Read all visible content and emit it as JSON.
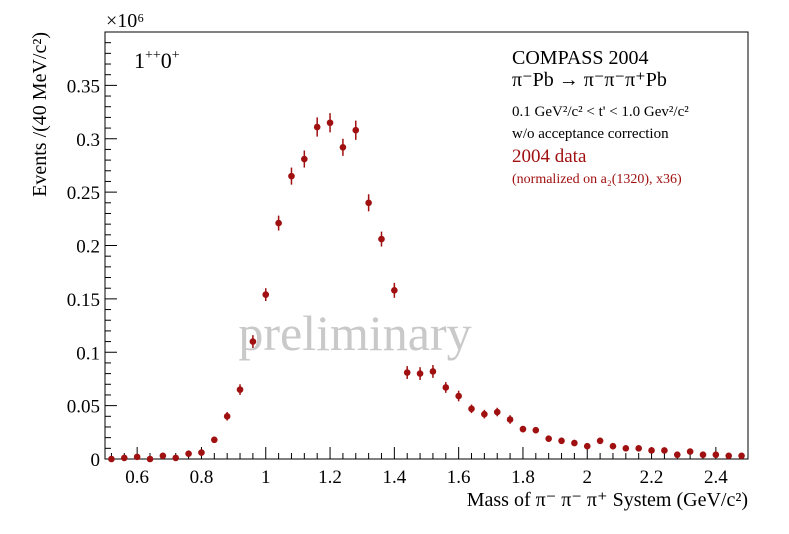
{
  "chart_data": {
    "type": "scatter",
    "title": "",
    "xlabel": "Mass of π⁻ π⁻ π⁺ System (GeV/c²)",
    "ylabel": "Events /(40 MeV/c²)",
    "y_multiplier": "×10⁶",
    "xlim": [
      0.5,
      2.5
    ],
    "ylim": [
      0,
      0.4
    ],
    "x_ticks": [
      "0.6",
      "0.8",
      "1",
      "1.2",
      "1.4",
      "1.6",
      "1.8",
      "2",
      "2.2",
      "2.4"
    ],
    "y_ticks": [
      "0",
      "0.05",
      "0.1",
      "0.15",
      "0.2",
      "0.25",
      "0.3",
      "0.35"
    ],
    "x_tick_values": [
      0.6,
      0.8,
      1.0,
      1.2,
      1.4,
      1.6,
      1.8,
      2.0,
      2.2,
      2.4
    ],
    "y_tick_values": [
      0,
      0.05,
      0.1,
      0.15,
      0.2,
      0.25,
      0.3,
      0.35
    ],
    "wave_label": {
      "main": "1",
      "sup1": "++",
      "mid": "0",
      "sup2": "+"
    },
    "watermark": "preliminary",
    "legend": {
      "line1": "COMPASS 2004",
      "line2": "π⁻Pb → π⁻π⁻π⁺Pb",
      "line3": "0.1 GeV²/c² < t' < 1.0 Gev²/c²",
      "line4": "w/o acceptance correction",
      "series_name": "2004 data",
      "series_note": "(normalized on a₂(1320), x36)"
    },
    "series": [
      {
        "name": "2004 data",
        "color": "#a01010",
        "x": [
          0.52,
          0.56,
          0.6,
          0.64,
          0.68,
          0.72,
          0.76,
          0.8,
          0.84,
          0.88,
          0.92,
          0.96,
          1.0,
          1.04,
          1.08,
          1.12,
          1.16,
          1.2,
          1.24,
          1.28,
          1.32,
          1.36,
          1.4,
          1.44,
          1.48,
          1.52,
          1.56,
          1.6,
          1.64,
          1.68,
          1.72,
          1.76,
          1.8,
          1.84,
          1.88,
          1.92,
          1.96,
          2.0,
          2.04,
          2.08,
          2.12,
          2.16,
          2.2,
          2.24,
          2.28,
          2.32,
          2.36,
          2.4,
          2.44,
          2.48
        ],
        "y": [
          0.0,
          0.001,
          0.002,
          0.0,
          0.003,
          0.001,
          0.005,
          0.006,
          0.018,
          0.04,
          0.065,
          0.11,
          0.154,
          0.221,
          0.265,
          0.281,
          0.311,
          0.315,
          0.292,
          0.308,
          0.24,
          0.206,
          0.158,
          0.081,
          0.08,
          0.082,
          0.067,
          0.059,
          0.047,
          0.042,
          0.044,
          0.037,
          0.028,
          0.027,
          0.019,
          0.017,
          0.015,
          0.012,
          0.017,
          0.012,
          0.01,
          0.01,
          0.008,
          0.008,
          0.004,
          0.007,
          0.004,
          0.004,
          0.003,
          0.003
        ],
        "err": [
          0.002,
          0.002,
          0.002,
          0.002,
          0.002,
          0.002,
          0.002,
          0.003,
          0.003,
          0.004,
          0.005,
          0.006,
          0.006,
          0.007,
          0.008,
          0.008,
          0.009,
          0.009,
          0.008,
          0.009,
          0.008,
          0.007,
          0.007,
          0.006,
          0.006,
          0.006,
          0.005,
          0.005,
          0.004,
          0.004,
          0.004,
          0.004,
          0.003,
          0.003,
          0.003,
          0.003,
          0.003,
          0.003,
          0.003,
          0.003,
          0.002,
          0.002,
          0.002,
          0.002,
          0.002,
          0.002,
          0.002,
          0.002,
          0.002,
          0.002
        ]
      }
    ]
  }
}
